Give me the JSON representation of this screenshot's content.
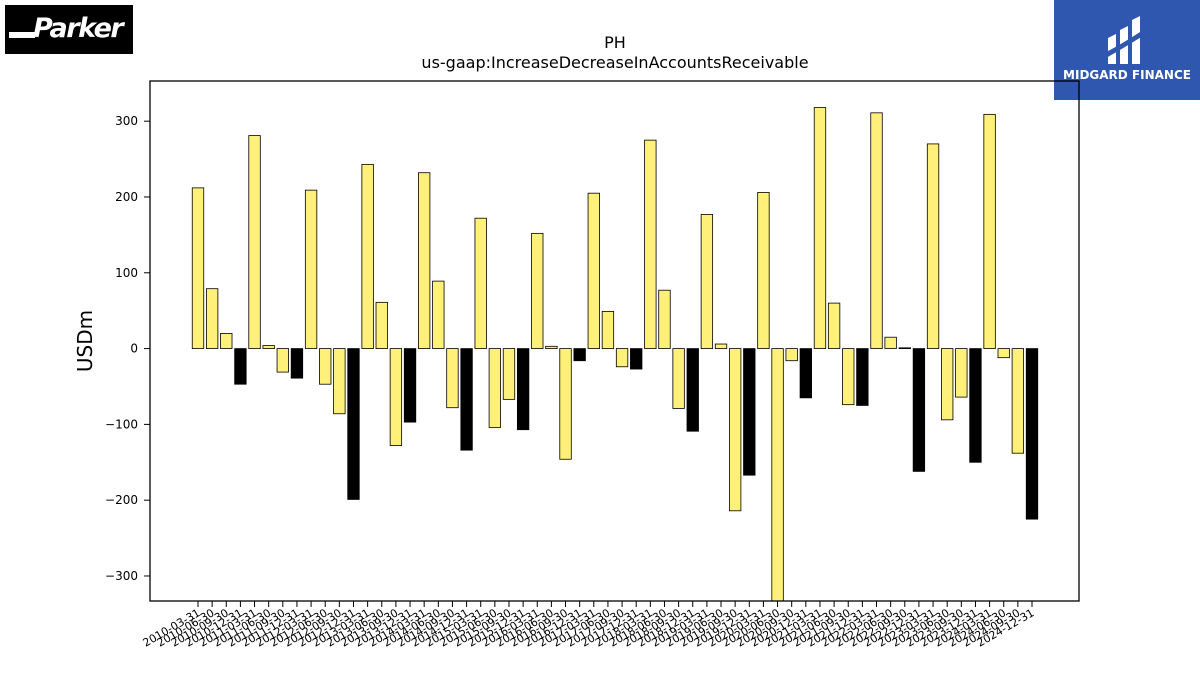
{
  "logos": {
    "left_text": "Parker",
    "right_text": "MIDGARD FINANCE",
    "right_bg": "#2f57b0"
  },
  "colors": {
    "bar_primary": "#fff07a",
    "bar_alt": "#000000"
  },
  "chart_data": {
    "type": "bar",
    "title": "PH",
    "subtitle": "us-gaap:IncreaseDecreaseInAccountsReceivable",
    "xlabel": "",
    "ylabel": "USDm",
    "ylim": [
      -333,
      353
    ],
    "yticks": [
      -300,
      -200,
      -100,
      0,
      100,
      200,
      300
    ],
    "grid": false,
    "legend": "none",
    "categories": [
      "2010-03-31",
      "2010-06-30",
      "2010-09-30",
      "2010-12-31",
      "2011-03-31",
      "2011-06-30",
      "2011-09-30",
      "2011-12-31",
      "2012-03-31",
      "2012-06-30",
      "2012-09-30",
      "2012-12-31",
      "2013-03-31",
      "2013-06-30",
      "2013-09-30",
      "2013-12-31",
      "2014-03-31",
      "2014-06-30",
      "2014-09-30",
      "2014-12-31",
      "2015-03-31",
      "2015-06-30",
      "2015-09-30",
      "2015-12-31",
      "2016-03-31",
      "2016-06-30",
      "2016-09-30",
      "2016-12-31",
      "2017-03-31",
      "2017-06-30",
      "2017-09-30",
      "2017-12-31",
      "2018-03-31",
      "2018-06-30",
      "2018-09-30",
      "2018-12-31",
      "2019-03-31",
      "2019-06-30",
      "2019-09-30",
      "2019-12-31",
      "2020-03-31",
      "2020-06-30",
      "2020-09-30",
      "2020-12-31",
      "2021-03-31",
      "2021-06-30",
      "2021-09-30",
      "2021-12-31",
      "2022-03-31",
      "2022-06-30",
      "2022-09-30",
      "2022-12-31",
      "2023-03-31",
      "2023-06-30",
      "2023-09-30",
      "2023-12-31",
      "2024-03-31",
      "2024-06-30",
      "2024-09-30",
      "2024-12-31"
    ],
    "values": [
      212,
      79,
      20,
      -47,
      281,
      4,
      -31,
      -39,
      209,
      -47,
      -86,
      -199,
      243,
      61,
      -128,
      -97,
      232,
      89,
      -78,
      -134,
      172,
      -104,
      -67,
      -107,
      152,
      3,
      -146,
      -16,
      205,
      49,
      -24,
      -27,
      275,
      77,
      -79,
      -109,
      177,
      6,
      -214,
      -167,
      206,
      -333,
      -16,
      -65,
      318,
      60,
      -74,
      -75,
      311,
      15,
      1,
      -162,
      270,
      -94,
      -64,
      -150,
      309,
      -12,
      -138,
      -225
    ],
    "colors_by_index": [
      "#fff07a",
      "#fff07a",
      "#fff07a",
      "#000000",
      "#fff07a",
      "#fff07a",
      "#fff07a",
      "#000000",
      "#fff07a",
      "#fff07a",
      "#fff07a",
      "#000000",
      "#fff07a",
      "#fff07a",
      "#fff07a",
      "#000000",
      "#fff07a",
      "#fff07a",
      "#fff07a",
      "#000000",
      "#fff07a",
      "#fff07a",
      "#fff07a",
      "#000000",
      "#fff07a",
      "#fff07a",
      "#fff07a",
      "#000000",
      "#fff07a",
      "#fff07a",
      "#fff07a",
      "#000000",
      "#fff07a",
      "#fff07a",
      "#fff07a",
      "#000000",
      "#fff07a",
      "#fff07a",
      "#fff07a",
      "#000000",
      "#fff07a",
      "#fff07a",
      "#fff07a",
      "#000000",
      "#fff07a",
      "#fff07a",
      "#fff07a",
      "#000000",
      "#fff07a",
      "#fff07a",
      "#fff07a",
      "#000000",
      "#fff07a",
      "#fff07a",
      "#fff07a",
      "#000000",
      "#fff07a",
      "#fff07a",
      "#fff07a",
      "#000000"
    ]
  }
}
